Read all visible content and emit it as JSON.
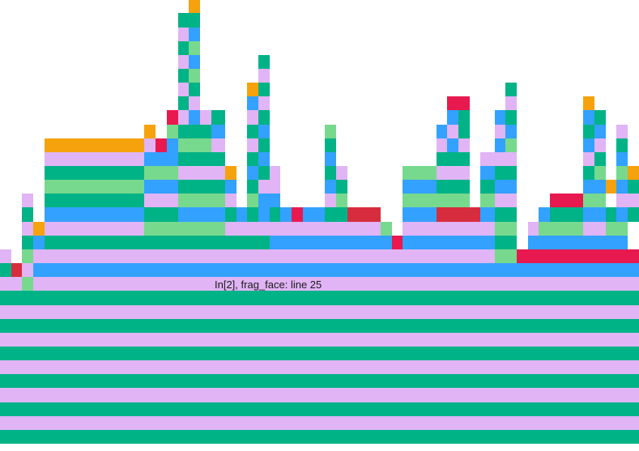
{
  "hover_label": "In[2], frag_face: line 25",
  "bottom_label": "",
  "colors": {
    "green": "#00b386",
    "lilac": "#e0b4f5",
    "blue": "#33a1ff",
    "mint": "#77d98e",
    "orange": "#f5a20d",
    "red": "#e8194f",
    "dark-red": "#d72c3d"
  },
  "chart_data": {
    "type": "flame",
    "columns": 23,
    "rows": 33,
    "unit": "frame width (x) and stack depth (y), row 0 at bottom",
    "bars": [
      {
        "x0": 0,
        "x1": 23,
        "y": 0,
        "c": "green"
      },
      {
        "x0": 0,
        "x1": 23,
        "y": 1,
        "c": "lilac"
      },
      {
        "x0": 0,
        "x1": 23,
        "y": 2,
        "c": "green"
      },
      {
        "x0": 0,
        "x1": 23,
        "y": 3,
        "c": "lilac"
      },
      {
        "x0": 0,
        "x1": 23,
        "y": 4,
        "c": "green"
      },
      {
        "x0": 0,
        "x1": 23,
        "y": 5,
        "c": "lilac"
      },
      {
        "x0": 0,
        "x1": 23,
        "y": 6,
        "c": "green"
      },
      {
        "x0": 0,
        "x1": 23,
        "y": 7,
        "c": "lilac"
      },
      {
        "x0": 0,
        "x1": 23,
        "y": 8,
        "c": "green"
      },
      {
        "x0": 0,
        "x1": 23,
        "y": 9,
        "c": "lilac"
      },
      {
        "x0": 0,
        "x1": 23,
        "y": 10,
        "c": "green"
      },
      {
        "x0": 0,
        "x1": 0.8,
        "y": 11,
        "c": "lilac"
      },
      {
        "x0": 0.8,
        "x1": 1.2,
        "y": 11,
        "c": "mint"
      },
      {
        "x0": 1.2,
        "x1": 23,
        "y": 11,
        "c": "lilac"
      },
      {
        "x0": 0,
        "x1": 0.4,
        "y": 12,
        "c": "green"
      },
      {
        "x0": 0.4,
        "x1": 0.8,
        "y": 12,
        "c": "dark-red"
      },
      {
        "x0": 0.8,
        "x1": 1.2,
        "y": 12,
        "c": "lilac"
      },
      {
        "x0": 1.2,
        "x1": 23,
        "y": 12,
        "c": "blue"
      },
      {
        "x0": 0,
        "x1": 0.4,
        "y": 13,
        "c": "lilac"
      },
      {
        "x0": 0.8,
        "x1": 1.2,
        "y": 13,
        "c": "mint"
      },
      {
        "x0": 1.2,
        "x1": 17.8,
        "y": 13,
        "c": "lilac"
      },
      {
        "x0": 17.8,
        "x1": 18.6,
        "y": 13,
        "c": "mint"
      },
      {
        "x0": 18.6,
        "x1": 23,
        "y": 13,
        "c": "red"
      },
      {
        "x0": 0.8,
        "x1": 1.2,
        "y": 14,
        "c": "green"
      },
      {
        "x0": 1.2,
        "x1": 1.6,
        "y": 14,
        "c": "blue"
      },
      {
        "x0": 1.6,
        "x1": 9.7,
        "y": 14,
        "c": "green"
      },
      {
        "x0": 9.7,
        "x1": 14.1,
        "y": 14,
        "c": "blue"
      },
      {
        "x0": 14.1,
        "x1": 14.5,
        "y": 14,
        "c": "red"
      },
      {
        "x0": 14.5,
        "x1": 17.8,
        "y": 14,
        "c": "blue"
      },
      {
        "x0": 17.8,
        "x1": 18.6,
        "y": 14,
        "c": "green"
      },
      {
        "x0": 19,
        "x1": 22.6,
        "y": 14,
        "c": "blue"
      },
      {
        "x0": 0.8,
        "x1": 1.2,
        "y": 15,
        "c": "lilac"
      },
      {
        "x0": 1.2,
        "x1": 1.6,
        "y": 15,
        "c": "orange"
      },
      {
        "x0": 1.6,
        "x1": 5.2,
        "y": 15,
        "c": "lilac"
      },
      {
        "x0": 5.2,
        "x1": 8.1,
        "y": 15,
        "c": "mint"
      },
      {
        "x0": 8.1,
        "x1": 9.7,
        "y": 15,
        "c": "lilac"
      },
      {
        "x0": 9.7,
        "x1": 13.7,
        "y": 15,
        "c": "lilac"
      },
      {
        "x0": 13.7,
        "x1": 14.1,
        "y": 15,
        "c": "mint"
      },
      {
        "x0": 14.5,
        "x1": 17.8,
        "y": 15,
        "c": "lilac"
      },
      {
        "x0": 17.8,
        "x1": 18.6,
        "y": 15,
        "c": "mint"
      },
      {
        "x0": 19,
        "x1": 19.4,
        "y": 15,
        "c": "lilac"
      },
      {
        "x0": 19.4,
        "x1": 21,
        "y": 15,
        "c": "mint"
      },
      {
        "x0": 21,
        "x1": 21.8,
        "y": 15,
        "c": "lilac"
      },
      {
        "x0": 21.8,
        "x1": 22.6,
        "y": 15,
        "c": "mint"
      },
      {
        "x0": 0.8,
        "x1": 1.2,
        "y": 16,
        "c": "green"
      },
      {
        "x0": 1.6,
        "x1": 5.2,
        "y": 16,
        "c": "blue"
      },
      {
        "x0": 5.2,
        "x1": 6.4,
        "y": 16,
        "c": "green"
      },
      {
        "x0": 6.4,
        "x1": 8.1,
        "y": 16,
        "c": "blue"
      },
      {
        "x0": 8.1,
        "x1": 8.5,
        "y": 16,
        "c": "green"
      },
      {
        "x0": 8.5,
        "x1": 8.9,
        "y": 16,
        "c": "blue"
      },
      {
        "x0": 8.9,
        "x1": 9.3,
        "y": 16,
        "c": "green"
      },
      {
        "x0": 9.3,
        "x1": 9.7,
        "y": 16,
        "c": "blue"
      },
      {
        "x0": 9.7,
        "x1": 10.1,
        "y": 16,
        "c": "green"
      },
      {
        "x0": 10.1,
        "x1": 10.5,
        "y": 16,
        "c": "blue"
      },
      {
        "x0": 10.5,
        "x1": 10.9,
        "y": 16,
        "c": "red"
      },
      {
        "x0": 10.9,
        "x1": 11.7,
        "y": 16,
        "c": "blue"
      },
      {
        "x0": 11.7,
        "x1": 12.5,
        "y": 16,
        "c": "green"
      },
      {
        "x0": 12.5,
        "x1": 13.7,
        "y": 16,
        "c": "dark-red"
      },
      {
        "x0": 14.5,
        "x1": 15.7,
        "y": 16,
        "c": "blue"
      },
      {
        "x0": 15.7,
        "x1": 17.3,
        "y": 16,
        "c": "dark-red"
      },
      {
        "x0": 17.3,
        "x1": 17.8,
        "y": 16,
        "c": "blue"
      },
      {
        "x0": 17.8,
        "x1": 18.6,
        "y": 16,
        "c": "green"
      },
      {
        "x0": 19.4,
        "x1": 19.8,
        "y": 16,
        "c": "blue"
      },
      {
        "x0": 19.8,
        "x1": 21,
        "y": 16,
        "c": "green"
      },
      {
        "x0": 21,
        "x1": 21.8,
        "y": 16,
        "c": "blue"
      },
      {
        "x0": 21.8,
        "x1": 22.2,
        "y": 16,
        "c": "green"
      },
      {
        "x0": 22.2,
        "x1": 22.6,
        "y": 16,
        "c": "blue"
      },
      {
        "x0": 22.6,
        "x1": 23,
        "y": 16,
        "c": "green"
      },
      {
        "x0": 0.8,
        "x1": 1.2,
        "y": 17,
        "c": "lilac"
      },
      {
        "x0": 1.6,
        "x1": 5.2,
        "y": 17,
        "c": "green"
      },
      {
        "x0": 5.2,
        "x1": 6.4,
        "y": 17,
        "c": "lilac"
      },
      {
        "x0": 6.4,
        "x1": 8.1,
        "y": 17,
        "c": "mint"
      },
      {
        "x0": 8.1,
        "x1": 8.5,
        "y": 17,
        "c": "lilac"
      },
      {
        "x0": 8.9,
        "x1": 9.3,
        "y": 17,
        "c": "mint"
      },
      {
        "x0": 9.3,
        "x1": 10.1,
        "y": 17,
        "c": "blue"
      },
      {
        "x0": 11.7,
        "x1": 12.1,
        "y": 17,
        "c": "lilac"
      },
      {
        "x0": 12.1,
        "x1": 12.5,
        "y": 17,
        "c": "mint"
      },
      {
        "x0": 14.5,
        "x1": 15.7,
        "y": 17,
        "c": "mint"
      },
      {
        "x0": 15.7,
        "x1": 16.9,
        "y": 17,
        "c": "mint"
      },
      {
        "x0": 17.3,
        "x1": 17.8,
        "y": 17,
        "c": "mint"
      },
      {
        "x0": 17.8,
        "x1": 18.6,
        "y": 17,
        "c": "lilac"
      },
      {
        "x0": 19.8,
        "x1": 21,
        "y": 17,
        "c": "red"
      },
      {
        "x0": 21,
        "x1": 21.8,
        "y": 17,
        "c": "mint"
      },
      {
        "x0": 22.2,
        "x1": 22.6,
        "y": 17,
        "c": "lilac"
      },
      {
        "x0": 22.6,
        "x1": 23,
        "y": 17,
        "c": "lilac"
      },
      {
        "x0": 1.6,
        "x1": 5.2,
        "y": 18,
        "c": "mint"
      },
      {
        "x0": 5.2,
        "x1": 6.4,
        "y": 18,
        "c": "blue"
      },
      {
        "x0": 6.4,
        "x1": 8.1,
        "y": 18,
        "c": "green"
      },
      {
        "x0": 8.1,
        "x1": 8.5,
        "y": 18,
        "c": "blue"
      },
      {
        "x0": 8.9,
        "x1": 9.3,
        "y": 18,
        "c": "green"
      },
      {
        "x0": 9.3,
        "x1": 10.1,
        "y": 18,
        "c": "lilac"
      },
      {
        "x0": 11.7,
        "x1": 12.1,
        "y": 18,
        "c": "blue"
      },
      {
        "x0": 12.1,
        "x1": 12.5,
        "y": 18,
        "c": "green"
      },
      {
        "x0": 14.5,
        "x1": 15.7,
        "y": 18,
        "c": "blue"
      },
      {
        "x0": 15.7,
        "x1": 16.9,
        "y": 18,
        "c": "green"
      },
      {
        "x0": 17.3,
        "x1": 17.8,
        "y": 18,
        "c": "green"
      },
      {
        "x0": 17.8,
        "x1": 18.6,
        "y": 18,
        "c": "blue"
      },
      {
        "x0": 21,
        "x1": 21.8,
        "y": 18,
        "c": "blue"
      },
      {
        "x0": 21.8,
        "x1": 22.2,
        "y": 18,
        "c": "orange"
      },
      {
        "x0": 22.2,
        "x1": 22.6,
        "y": 18,
        "c": "blue"
      },
      {
        "x0": 22.6,
        "x1": 23,
        "y": 18,
        "c": "green"
      },
      {
        "x0": 1.6,
        "x1": 5.2,
        "y": 19,
        "c": "green"
      },
      {
        "x0": 5.2,
        "x1": 6.4,
        "y": 19,
        "c": "mint"
      },
      {
        "x0": 6.4,
        "x1": 8.1,
        "y": 19,
        "c": "lilac"
      },
      {
        "x0": 8.1,
        "x1": 8.5,
        "y": 19,
        "c": "orange"
      },
      {
        "x0": 8.9,
        "x1": 9.3,
        "y": 19,
        "c": "blue"
      },
      {
        "x0": 9.3,
        "x1": 9.7,
        "y": 19,
        "c": "green"
      },
      {
        "x0": 9.7,
        "x1": 10.1,
        "y": 19,
        "c": "lilac"
      },
      {
        "x0": 11.7,
        "x1": 12.1,
        "y": 19,
        "c": "green"
      },
      {
        "x0": 12.1,
        "x1": 12.5,
        "y": 19,
        "c": "lilac"
      },
      {
        "x0": 14.5,
        "x1": 15.7,
        "y": 19,
        "c": "mint"
      },
      {
        "x0": 15.7,
        "x1": 16.9,
        "y": 19,
        "c": "lilac"
      },
      {
        "x0": 17.3,
        "x1": 17.8,
        "y": 19,
        "c": "blue"
      },
      {
        "x0": 17.8,
        "x1": 18.6,
        "y": 19,
        "c": "green"
      },
      {
        "x0": 21,
        "x1": 21.4,
        "y": 19,
        "c": "green"
      },
      {
        "x0": 21.4,
        "x1": 21.8,
        "y": 19,
        "c": "mint"
      },
      {
        "x0": 22.2,
        "x1": 22.6,
        "y": 19,
        "c": "mint"
      },
      {
        "x0": 22.6,
        "x1": 23,
        "y": 19,
        "c": "orange"
      },
      {
        "x0": 1.6,
        "x1": 5.2,
        "y": 20,
        "c": "lilac"
      },
      {
        "x0": 5.2,
        "x1": 6.4,
        "y": 20,
        "c": "blue"
      },
      {
        "x0": 6.4,
        "x1": 8.1,
        "y": 20,
        "c": "green"
      },
      {
        "x0": 8.9,
        "x1": 9.3,
        "y": 20,
        "c": "green"
      },
      {
        "x0": 9.3,
        "x1": 9.7,
        "y": 20,
        "c": "blue"
      },
      {
        "x0": 11.7,
        "x1": 12.1,
        "y": 20,
        "c": "blue"
      },
      {
        "x0": 15.7,
        "x1": 16.9,
        "y": 20,
        "c": "green"
      },
      {
        "x0": 17.3,
        "x1": 17.8,
        "y": 20,
        "c": "lilac"
      },
      {
        "x0": 17.8,
        "x1": 18.6,
        "y": 20,
        "c": "lilac"
      },
      {
        "x0": 21,
        "x1": 21.4,
        "y": 20,
        "c": "lilac"
      },
      {
        "x0": 21.4,
        "x1": 21.8,
        "y": 20,
        "c": "green"
      },
      {
        "x0": 22.2,
        "x1": 22.6,
        "y": 20,
        "c": "blue"
      },
      {
        "x0": 1.6,
        "x1": 5.2,
        "y": 21,
        "c": "orange"
      },
      {
        "x0": 5.2,
        "x1": 5.6,
        "y": 21,
        "c": "lilac"
      },
      {
        "x0": 5.6,
        "x1": 6,
        "y": 21,
        "c": "red"
      },
      {
        "x0": 6,
        "x1": 6.4,
        "y": 21,
        "c": "blue"
      },
      {
        "x0": 6.4,
        "x1": 7.6,
        "y": 21,
        "c": "mint"
      },
      {
        "x0": 7.6,
        "x1": 8.1,
        "y": 21,
        "c": "lilac"
      },
      {
        "x0": 8.9,
        "x1": 9.3,
        "y": 21,
        "c": "lilac"
      },
      {
        "x0": 9.3,
        "x1": 9.7,
        "y": 21,
        "c": "green"
      },
      {
        "x0": 11.7,
        "x1": 12.1,
        "y": 21,
        "c": "green"
      },
      {
        "x0": 15.7,
        "x1": 16.1,
        "y": 21,
        "c": "lilac"
      },
      {
        "x0": 16.1,
        "x1": 16.5,
        "y": 21,
        "c": "blue"
      },
      {
        "x0": 16.5,
        "x1": 16.9,
        "y": 21,
        "c": "lilac"
      },
      {
        "x0": 17.8,
        "x1": 18.2,
        "y": 21,
        "c": "blue"
      },
      {
        "x0": 18.2,
        "x1": 18.6,
        "y": 21,
        "c": "mint"
      },
      {
        "x0": 21,
        "x1": 21.4,
        "y": 21,
        "c": "blue"
      },
      {
        "x0": 21.4,
        "x1": 21.8,
        "y": 21,
        "c": "lilac"
      },
      {
        "x0": 22.2,
        "x1": 22.6,
        "y": 21,
        "c": "green"
      },
      {
        "x0": 5.2,
        "x1": 5.6,
        "y": 22,
        "c": "orange"
      },
      {
        "x0": 6,
        "x1": 6.4,
        "y": 22,
        "c": "mint"
      },
      {
        "x0": 6.4,
        "x1": 7.6,
        "y": 22,
        "c": "green"
      },
      {
        "x0": 7.6,
        "x1": 8.1,
        "y": 22,
        "c": "blue"
      },
      {
        "x0": 8.9,
        "x1": 9.3,
        "y": 22,
        "c": "green"
      },
      {
        "x0": 9.3,
        "x1": 9.7,
        "y": 22,
        "c": "blue"
      },
      {
        "x0": 11.7,
        "x1": 12.1,
        "y": 22,
        "c": "mint"
      },
      {
        "x0": 15.7,
        "x1": 16.1,
        "y": 22,
        "c": "blue"
      },
      {
        "x0": 16.1,
        "x1": 16.5,
        "y": 22,
        "c": "lilac"
      },
      {
        "x0": 16.5,
        "x1": 16.9,
        "y": 22,
        "c": "green"
      },
      {
        "x0": 17.8,
        "x1": 18.2,
        "y": 22,
        "c": "lilac"
      },
      {
        "x0": 18.2,
        "x1": 18.6,
        "y": 22,
        "c": "blue"
      },
      {
        "x0": 21,
        "x1": 21.4,
        "y": 22,
        "c": "green"
      },
      {
        "x0": 21.4,
        "x1": 21.8,
        "y": 22,
        "c": "blue"
      },
      {
        "x0": 22.2,
        "x1": 22.6,
        "y": 22,
        "c": "lilac"
      },
      {
        "x0": 6,
        "x1": 6.4,
        "y": 23,
        "c": "red"
      },
      {
        "x0": 6.4,
        "x1": 6.8,
        "y": 23,
        "c": "lilac"
      },
      {
        "x0": 6.8,
        "x1": 7.2,
        "y": 23,
        "c": "blue"
      },
      {
        "x0": 7.2,
        "x1": 7.6,
        "y": 23,
        "c": "lilac"
      },
      {
        "x0": 7.6,
        "x1": 8.1,
        "y": 23,
        "c": "green"
      },
      {
        "x0": 8.9,
        "x1": 9.3,
        "y": 23,
        "c": "lilac"
      },
      {
        "x0": 9.3,
        "x1": 9.7,
        "y": 23,
        "c": "green"
      },
      {
        "x0": 16.1,
        "x1": 16.5,
        "y": 23,
        "c": "blue"
      },
      {
        "x0": 16.5,
        "x1": 16.9,
        "y": 23,
        "c": "green"
      },
      {
        "x0": 17.8,
        "x1": 18.2,
        "y": 23,
        "c": "blue"
      },
      {
        "x0": 18.2,
        "x1": 18.6,
        "y": 23,
        "c": "green"
      },
      {
        "x0": 21,
        "x1": 21.4,
        "y": 23,
        "c": "blue"
      },
      {
        "x0": 21.4,
        "x1": 21.8,
        "y": 23,
        "c": "green"
      },
      {
        "x0": 6.4,
        "x1": 6.8,
        "y": 24,
        "c": "green"
      },
      {
        "x0": 6.8,
        "x1": 7.2,
        "y": 24,
        "c": "lilac"
      },
      {
        "x0": 8.9,
        "x1": 9.3,
        "y": 24,
        "c": "blue"
      },
      {
        "x0": 9.3,
        "x1": 9.7,
        "y": 24,
        "c": "lilac"
      },
      {
        "x0": 16.1,
        "x1": 16.9,
        "y": 24,
        "c": "red"
      },
      {
        "x0": 18.2,
        "x1": 18.6,
        "y": 24,
        "c": "lilac"
      },
      {
        "x0": 21,
        "x1": 21.4,
        "y": 24,
        "c": "orange"
      },
      {
        "x0": 6.4,
        "x1": 6.8,
        "y": 25,
        "c": "lilac"
      },
      {
        "x0": 6.8,
        "x1": 7.2,
        "y": 25,
        "c": "green"
      },
      {
        "x0": 8.9,
        "x1": 9.3,
        "y": 25,
        "c": "orange"
      },
      {
        "x0": 9.3,
        "x1": 9.7,
        "y": 25,
        "c": "green"
      },
      {
        "x0": 18.2,
        "x1": 18.6,
        "y": 25,
        "c": "green"
      },
      {
        "x0": 6.4,
        "x1": 6.8,
        "y": 26,
        "c": "green"
      },
      {
        "x0": 6.8,
        "x1": 7.2,
        "y": 26,
        "c": "mint"
      },
      {
        "x0": 9.3,
        "x1": 9.7,
        "y": 26,
        "c": "lilac"
      },
      {
        "x0": 6.4,
        "x1": 6.8,
        "y": 27,
        "c": "lilac"
      },
      {
        "x0": 6.8,
        "x1": 7.2,
        "y": 27,
        "c": "blue"
      },
      {
        "x0": 9.3,
        "x1": 9.7,
        "y": 27,
        "c": "green"
      },
      {
        "x0": 6.4,
        "x1": 6.8,
        "y": 28,
        "c": "green"
      },
      {
        "x0": 6.8,
        "x1": 7.2,
        "y": 28,
        "c": "mint"
      },
      {
        "x0": 6.4,
        "x1": 6.8,
        "y": 29,
        "c": "lilac"
      },
      {
        "x0": 6.8,
        "x1": 7.2,
        "y": 29,
        "c": "blue"
      },
      {
        "x0": 6.4,
        "x1": 6.8,
        "y": 30,
        "c": "green"
      },
      {
        "x0": 6.8,
        "x1": 7.2,
        "y": 30,
        "c": "green"
      },
      {
        "x0": 6.8,
        "x1": 7.2,
        "y": 31,
        "c": "orange"
      }
    ]
  }
}
